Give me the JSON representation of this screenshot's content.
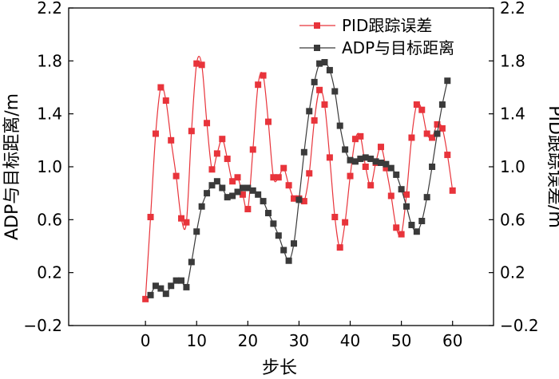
{
  "chart_data": {
    "type": "line",
    "x_label": "步长",
    "y_left_label": "ADP与目标距离/m",
    "y_right_label": "PID跟踪误差/m",
    "xlim": [
      -15,
      68
    ],
    "ylim": [
      -0.2,
      2.2
    ],
    "x_ticks": [
      "0",
      "10",
      "20",
      "30",
      "40",
      "50",
      "60"
    ],
    "x_tick_values": [
      0,
      10,
      20,
      30,
      40,
      50,
      60
    ],
    "y_ticks": [
      "−0.2",
      "0.2",
      "0.6",
      "1.0",
      "1.4",
      "1.8",
      "2.2"
    ],
    "y_tick_values": [
      -0.2,
      0.2,
      0.6,
      1.0,
      1.4,
      1.8,
      2.2
    ],
    "legend_position": "top-right",
    "series": [
      {
        "name": "PID跟踪误差",
        "color": "#e8343b",
        "marker": "square",
        "x": [
          0,
          1,
          2,
          3,
          4,
          5,
          6,
          7,
          8,
          9,
          10,
          11,
          12,
          13,
          14,
          15,
          16,
          17,
          18,
          19,
          20,
          21,
          22,
          23,
          24,
          25,
          26,
          27,
          28,
          29,
          30,
          31,
          32,
          33,
          34,
          35,
          36,
          37,
          38,
          39,
          40,
          41,
          42,
          43,
          44,
          45,
          46,
          47,
          48,
          49,
          50,
          51,
          52,
          53,
          54,
          55,
          56,
          57,
          58,
          59,
          60
        ],
        "y": [
          0.0,
          0.62,
          1.25,
          1.6,
          1.5,
          1.2,
          0.93,
          0.61,
          0.58,
          1.27,
          1.78,
          1.77,
          1.33,
          0.98,
          1.1,
          1.21,
          1.06,
          0.89,
          0.92,
          0.79,
          0.68,
          1.13,
          1.62,
          1.69,
          1.34,
          0.92,
          0.92,
          0.99,
          0.86,
          0.76,
          0.76,
          0.74,
          0.95,
          1.35,
          1.58,
          1.47,
          1.07,
          0.62,
          0.39,
          0.58,
          0.93,
          1.21,
          1.23,
          1.0,
          0.86,
          1.03,
          1.15,
          0.99,
          0.78,
          0.54,
          0.49,
          0.79,
          1.22,
          1.47,
          1.43,
          1.25,
          1.22,
          1.32,
          1.29,
          1.09,
          0.82
        ]
      },
      {
        "name": "ADP与目标距离",
        "color": "#3a3a3a",
        "marker": "square",
        "x": [
          1,
          2,
          3,
          4,
          5,
          6,
          7,
          8,
          9,
          10,
          11,
          12,
          13,
          14,
          15,
          16,
          17,
          18,
          19,
          20,
          21,
          22,
          23,
          24,
          25,
          26,
          27,
          28,
          29,
          30,
          31,
          32,
          33,
          34,
          35,
          36,
          37,
          38,
          39,
          40,
          41,
          42,
          43,
          44,
          45,
          46,
          47,
          48,
          49,
          50,
          51,
          52,
          53,
          54,
          55,
          56,
          57,
          58,
          59
        ],
        "y": [
          0.03,
          0.1,
          0.08,
          0.04,
          0.1,
          0.14,
          0.14,
          0.09,
          0.28,
          0.51,
          0.7,
          0.8,
          0.86,
          0.89,
          0.84,
          0.77,
          0.78,
          0.81,
          0.84,
          0.84,
          0.82,
          0.79,
          0.74,
          0.65,
          0.57,
          0.48,
          0.37,
          0.29,
          0.42,
          0.75,
          1.11,
          1.42,
          1.64,
          1.78,
          1.79,
          1.73,
          1.57,
          1.31,
          1.13,
          1.05,
          1.04,
          1.06,
          1.07,
          1.06,
          1.04,
          1.03,
          1.02,
          0.99,
          0.94,
          0.83,
          0.7,
          0.56,
          0.51,
          0.59,
          0.77,
          1.0,
          1.25,
          1.47,
          1.65
        ]
      }
    ]
  }
}
